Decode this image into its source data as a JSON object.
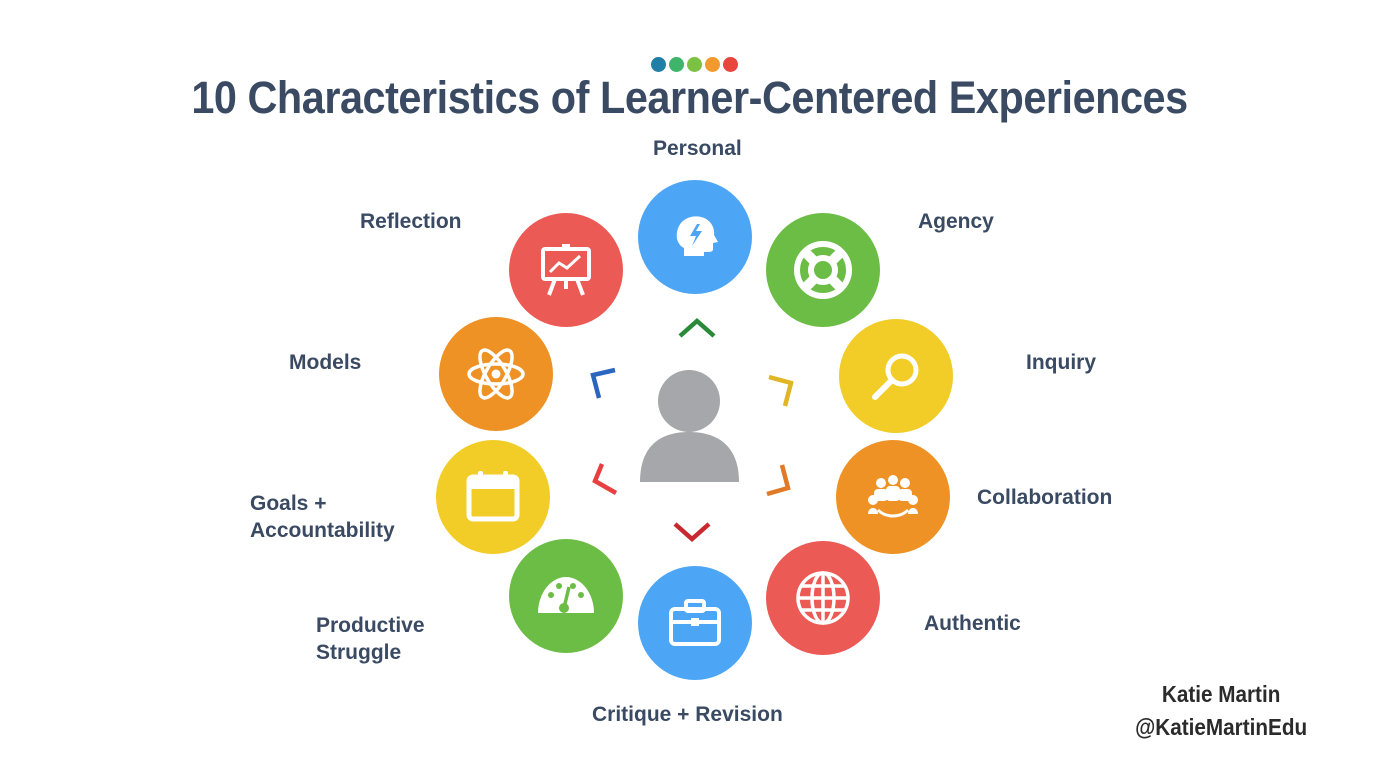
{
  "header": {
    "title": "10 Characteristics of Learner-Centered Experiences",
    "dot_colors": [
      "#1f7fa6",
      "#3fb56b",
      "#7cc242",
      "#f29a2e",
      "#e8453c"
    ]
  },
  "nodes": [
    {
      "label": "Personal",
      "color": "#4da6f5",
      "icon": "head-lightning-icon"
    },
    {
      "label": "Agency",
      "color": "#6cbd45",
      "icon": "lifebuoy-icon"
    },
    {
      "label": "Inquiry",
      "color": "#f2cd27",
      "icon": "magnifier-icon"
    },
    {
      "label": "Collaboration",
      "color": "#ee9226",
      "icon": "group-icon"
    },
    {
      "label": "Authentic",
      "color": "#ec5a55",
      "icon": "globe-icon"
    },
    {
      "label": "Critique + Revision",
      "color": "#4da6f5",
      "icon": "briefcase-icon"
    },
    {
      "label_line1": "Productive",
      "label_line2": "Struggle",
      "color": "#6cbd45",
      "icon": "gauge-icon"
    },
    {
      "label_line1": "Goals +",
      "label_line2": "Accountability",
      "color": "#f2cd27",
      "icon": "calendar-icon"
    },
    {
      "label": "Models",
      "color": "#ee9226",
      "icon": "atom-icon"
    },
    {
      "label": "Reflection",
      "color": "#ec5a55",
      "icon": "presentation-board-icon"
    }
  ],
  "center": {
    "icon": "person-icon",
    "color": "#a5a7aa"
  },
  "chevron_colors": [
    "#2a8a3a",
    "#e0b626",
    "#e07a26",
    "#c8282e",
    "#e84040",
    "#2a66c0"
  ],
  "credit": {
    "name": "Katie Martin",
    "handle": "@KatieMartinEdu"
  }
}
